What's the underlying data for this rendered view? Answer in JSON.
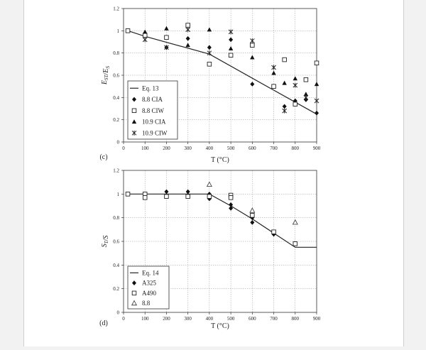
{
  "chart_data": [
    {
      "type": "scatter",
      "panel_label": "(c)",
      "ylabel": "E_ST/E_S",
      "xlabel": "T (°C)",
      "xlim": [
        0,
        900
      ],
      "ylim": [
        0,
        1.2
      ],
      "xticks": [
        0,
        100,
        200,
        300,
        400,
        500,
        600,
        700,
        800,
        900
      ],
      "yticks": [
        0,
        0.2,
        0.4,
        0.6,
        0.8,
        1,
        1.2
      ],
      "grid": true,
      "legend_position": "bottom-left",
      "series": [
        {
          "name": "Eq. 13",
          "marker": "line",
          "x": [
            20,
            100,
            400,
            900
          ],
          "y": [
            1.0,
            0.95,
            0.79,
            0.25
          ]
        },
        {
          "name": "8.8 CIA",
          "marker": "diamond",
          "x": [
            100,
            200,
            300,
            400,
            500,
            600,
            700,
            750,
            800,
            850,
            900
          ],
          "y": [
            0.97,
            0.85,
            0.93,
            0.85,
            0.92,
            0.52,
            0.5,
            0.32,
            0.37,
            0.38,
            0.26
          ]
        },
        {
          "name": "8.8 CIW",
          "marker": "square",
          "x": [
            20,
            100,
            200,
            300,
            400,
            500,
            600,
            700,
            750,
            800,
            850,
            900
          ],
          "y": [
            1.0,
            0.96,
            0.94,
            1.05,
            0.7,
            0.78,
            0.87,
            0.5,
            0.74,
            0.34,
            0.56,
            0.71
          ]
        },
        {
          "name": "10.9 CIA",
          "marker": "triangle",
          "x": [
            100,
            200,
            300,
            400,
            500,
            600,
            700,
            750,
            800,
            850,
            900
          ],
          "y": [
            0.99,
            1.02,
            0.87,
            1.01,
            0.84,
            0.76,
            0.62,
            0.53,
            0.57,
            0.43,
            0.52
          ]
        },
        {
          "name": "10.9 CIW",
          "marker": "star",
          "x": [
            100,
            200,
            300,
            400,
            500,
            600,
            700,
            750,
            800,
            850,
            900
          ],
          "y": [
            0.92,
            0.85,
            1.01,
            0.8,
            0.99,
            0.91,
            0.67,
            0.28,
            0.51,
            0.4,
            0.37
          ]
        }
      ]
    },
    {
      "type": "scatter",
      "panel_label": "(d)",
      "ylabel": "S_T/S",
      "xlabel": "T (°C)",
      "xlim": [
        0,
        900
      ],
      "ylim": [
        0,
        1.2
      ],
      "xticks": [
        0,
        100,
        200,
        300,
        400,
        500,
        600,
        700,
        800,
        900
      ],
      "yticks": [
        0,
        0.2,
        0.4,
        0.6,
        0.8,
        1,
        1.2
      ],
      "grid": true,
      "legend_position": "bottom-left",
      "series": [
        {
          "name": "Eq. 14",
          "marker": "line",
          "x": [
            20,
            400,
            500,
            600,
            700,
            800,
            900
          ],
          "y": [
            1.0,
            1.0,
            0.9,
            0.79,
            0.67,
            0.55,
            0.55
          ]
        },
        {
          "name": "A325",
          "marker": "diamond",
          "x": [
            20,
            100,
            100,
            200,
            300,
            300,
            400,
            400,
            500,
            500,
            600,
            600,
            700,
            800
          ],
          "y": [
            1.0,
            1.0,
            0.99,
            1.02,
            1.02,
            0.99,
            1.0,
            0.96,
            0.91,
            0.88,
            0.8,
            0.76,
            0.66,
            0.58
          ]
        },
        {
          "name": "A490",
          "marker": "square",
          "x": [
            20,
            100,
            100,
            200,
            300,
            400,
            500,
            500,
            600,
            700,
            800
          ],
          "y": [
            1.0,
            1.0,
            0.97,
            0.98,
            0.98,
            0.98,
            0.99,
            0.97,
            0.82,
            0.68,
            0.58
          ]
        },
        {
          "name": "8.8",
          "marker": "triangle-open",
          "x": [
            400,
            600,
            800
          ],
          "y": [
            1.08,
            0.86,
            0.76
          ]
        }
      ]
    }
  ]
}
